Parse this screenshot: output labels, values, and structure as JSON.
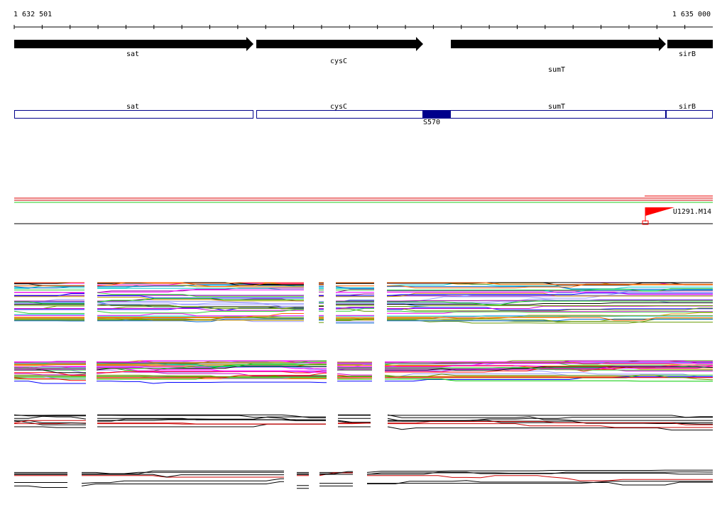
{
  "ruler": {
    "start": "1 632 501",
    "end": "1 635 000"
  },
  "genes": [
    {
      "label": "sat"
    },
    {
      "label": "cysC"
    },
    {
      "label": "sumT"
    },
    {
      "label": "sirB"
    }
  ],
  "transcripts": [
    {
      "label": "sat"
    },
    {
      "label": "cysC"
    },
    {
      "label": "sumT"
    },
    {
      "label": "sirB"
    }
  ],
  "feature": {
    "label": "S570"
  },
  "marker": {
    "label": "U1291.M14"
  }
}
